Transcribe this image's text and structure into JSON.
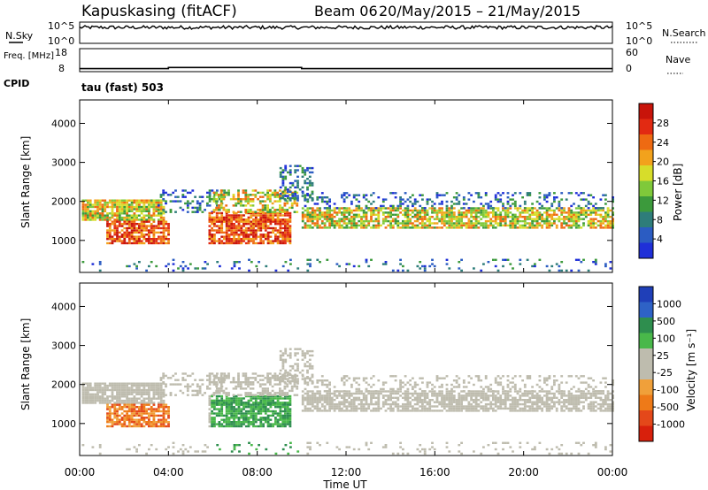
{
  "header": {
    "station": "Kapuskasing (fitACF)",
    "beam_label": "Beam 06",
    "date_range": "20/May/2015 – 21/May/2015",
    "cpid_label": "CPID",
    "program": "tau (fast) 503"
  },
  "colors": {
    "power_scale": [
      "#1f2fd8",
      "#2b5cc2",
      "#2e7d7a",
      "#3c9a3c",
      "#7fc93a",
      "#d7dd2a",
      "#f2a21c",
      "#ee6a12",
      "#e22a12",
      "#c8140a"
    ],
    "velocity_scale": [
      "#1f3fb8",
      "#2e62c6",
      "#2e8e4e",
      "#49b84a",
      "#bebcae",
      "#bebcae",
      "#f0a03a",
      "#ee7a18",
      "#e4481a",
      "#d8200c"
    ]
  },
  "chart_data": [
    {
      "type": "line",
      "panel": "noise",
      "left_label": "N.Sky",
      "right_label": "N.Search",
      "left_ticks": [
        "10^5",
        "10^0"
      ],
      "right_ticks": [
        "10^5",
        "10^0"
      ],
      "note": "N.Sky trace near top of range throughout the interval"
    },
    {
      "type": "line",
      "panel": "frequency",
      "left_label": "Freq. [MHz]",
      "right_label": "Nave",
      "left_ticks": [
        18,
        8
      ],
      "right_ticks": [
        60,
        0
      ],
      "series": [
        {
          "name": "Freq.",
          "x": [
            "00:00",
            "04:00",
            "10:00",
            "24:00"
          ],
          "values": [
            9.3,
            9.8,
            9.3,
            9.3
          ]
        }
      ]
    },
    {
      "type": "heatmap",
      "panel": "power",
      "ylabel": "Slant Range [km]",
      "y_ticks": [
        1000,
        2000,
        3000,
        4000
      ],
      "colorbar_label": "Power [dB]",
      "colorbar_ticks": [
        4,
        8,
        12,
        16,
        20,
        24,
        28
      ]
    },
    {
      "type": "heatmap",
      "panel": "velocity",
      "ylabel": "Slant Range [km]",
      "y_ticks": [
        1000,
        2000,
        3000,
        4000
      ],
      "colorbar_label": "Velocity [m s⁻¹]",
      "colorbar_ticks": [
        1000,
        500,
        100,
        25,
        -25,
        -100,
        -500,
        -1000
      ],
      "xlabel": "Time UT",
      "x_ticks": [
        "00:00",
        "04:00",
        "08:00",
        "12:00",
        "16:00",
        "20:00",
        "00:00"
      ]
    }
  ]
}
